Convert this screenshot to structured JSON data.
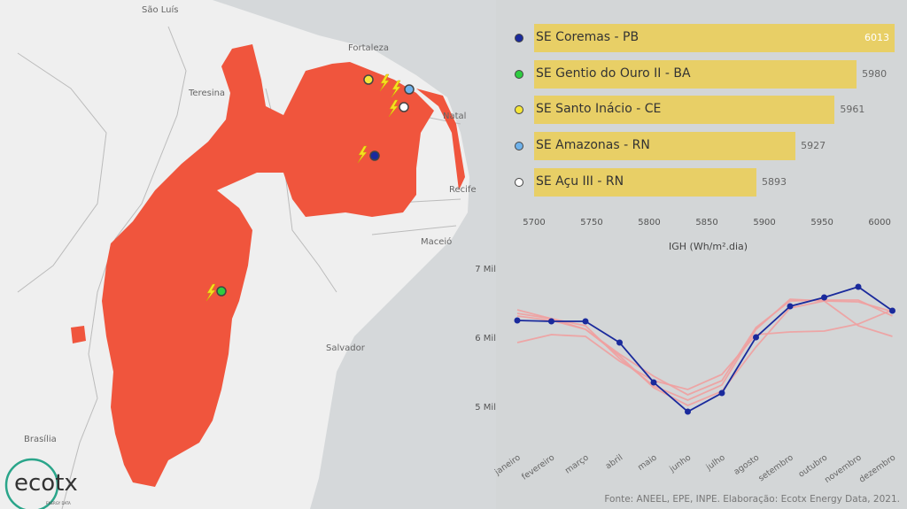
{
  "map": {
    "cities": [
      "São Luís",
      "Fortaleza",
      "Teresina",
      "Natal",
      "Recife",
      "Maceió",
      "Salvador",
      "Brasília"
    ],
    "logo": {
      "text": "ecotx",
      "sub": "ENERGY DATA"
    }
  },
  "colors": {
    "bar": "#e8cf66",
    "highlight": "#1a2a9c",
    "others": "#f0a0a0",
    "region": "#f0553d"
  },
  "bar_chart": {
    "axis_title": "IGH (Wh/m².dia)",
    "ticks": [
      "5700",
      "5750",
      "5800",
      "5850",
      "5900",
      "5950",
      "6000"
    ],
    "xlim": [
      5700,
      6013
    ],
    "items": [
      {
        "label": "SE Coremas - PB",
        "value": "6013",
        "color": "#1a2a9c"
      },
      {
        "label": "SE Gentio do Ouro II - BA",
        "value": "5980",
        "color": "#2ecc40"
      },
      {
        "label": "SE Santo Inácio - CE",
        "value": "5961",
        "color": "#f5e63a"
      },
      {
        "label": "SE Amazonas - RN",
        "value": "5927",
        "color": "#6fb2ea"
      },
      {
        "label": "SE Açu III - RN",
        "value": "5893",
        "color": "#ffffff"
      }
    ]
  },
  "chart_data": {
    "type": "line",
    "x": [
      "janeiro",
      "fevereiro",
      "março",
      "abril",
      "maio",
      "junho",
      "julho",
      "agosto",
      "setembro",
      "outubro",
      "novembro",
      "dezembro"
    ],
    "yticks": [
      "5 Mil",
      "6 Mil",
      "7 Mil"
    ],
    "ylim": [
      4500,
      7300
    ],
    "series": [
      {
        "values": [
          6346,
          6269,
          6115,
          5731,
          5269,
          5013,
          5218,
          5859,
          6423,
          6526,
          6513,
          6372
        ]
      },
      {
        "values": [
          5923,
          6038,
          6013,
          5654,
          5372,
          5244,
          5462,
          6038,
          6077,
          6090,
          6192,
          6397
        ]
      },
      {
        "values": [
          6397,
          6269,
          6167,
          5692,
          5295,
          5090,
          5308,
          6115,
          6551,
          6526,
          6167,
          6013
        ]
      },
      {
        "values": [
          6308,
          6244,
          6115,
          5756,
          5436,
          5167,
          5372,
          6141,
          6526,
          6538,
          6538,
          6308
        ]
      },
      {
        "values": [
          6244,
          6231,
          6231,
          5923,
          5346,
          4923,
          5192,
          6000,
          6449,
          6577,
          6731,
          6385
        ],
        "highlight": true
      }
    ]
  },
  "source": "Fonte: ANEEL, EPE, INPE. Elaboração: Ecotx Energy Data, 2021."
}
